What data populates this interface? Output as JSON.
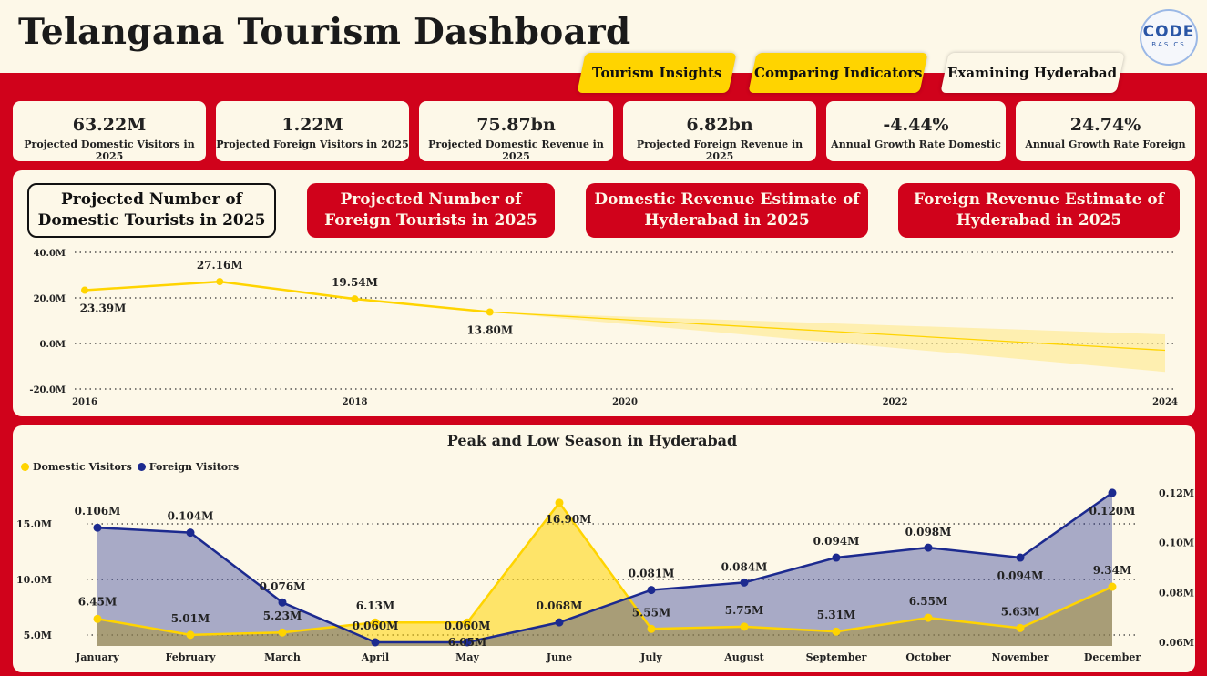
{
  "header": {
    "title": "Telangana Tourism Dashboard",
    "logo_main": "CODE",
    "logo_sub": "BASICS"
  },
  "nav": {
    "tourism_insights": "Tourism Insights",
    "comparing_indicators": "Comparing Indicators",
    "examining_hyderabad": "Examining Hyderabad",
    "active": "Examining Hyderabad"
  },
  "kpis": [
    {
      "value": "63.22M",
      "label": "Projected Domestic Visitors in 2025"
    },
    {
      "value": "1.22M",
      "label": "Projected Foreign Visitors in 2025"
    },
    {
      "value": "75.87bn",
      "label": "Projected Domestic Revenue in 2025"
    },
    {
      "value": "6.82bn",
      "label": "Projected Foreign Revenue in 2025"
    },
    {
      "value": "-4.44%",
      "label": "Annual Growth Rate Domestic"
    },
    {
      "value": "24.74%",
      "label": "Annual Growth Rate Foreign"
    }
  ],
  "tabs": [
    {
      "label": "Projected Number of Domestic Tourists in 2025",
      "active": true
    },
    {
      "label": "Projected Number of Foreign Tourists in 2025",
      "active": false
    },
    {
      "label": "Domestic Revenue Estimate of Hyderabad in 2025",
      "active": false
    },
    {
      "label": "Foreign Revenue Estimate of Hyderabad in 2025",
      "active": false
    }
  ],
  "colors": {
    "brand_red": "#d0021b",
    "panel_bg": "#fdf8e8",
    "yellow": "#ffd400",
    "navy": "#1c2a8f"
  },
  "chart_data": [
    {
      "type": "line",
      "x": [
        2016,
        2017,
        2018,
        2019
      ],
      "series": [
        {
          "values": [
            23.39,
            27.16,
            19.54,
            13.8
          ],
          "labels": [
            "23.39M",
            "27.16M",
            "19.54M",
            "13.80M"
          ]
        }
      ],
      "forecast": {
        "x": [
          2019,
          2024
        ],
        "values": [
          13.8,
          -3.0
        ],
        "upper": [
          13.8,
          4.0
        ],
        "lower": [
          13.8,
          -12.5
        ]
      },
      "xticks": [
        "2016",
        "2018",
        "2020",
        "2022",
        "2024"
      ],
      "xlim": [
        2016,
        2024
      ],
      "yticks": [
        "40.0M",
        "20.0M",
        "0.0M",
        "-20.0M"
      ],
      "ylim": [
        -20,
        40
      ],
      "grid": true
    },
    {
      "type": "area",
      "title": "Peak and Low Season in Hyderabad",
      "categories": [
        "January",
        "February",
        "March",
        "April",
        "May",
        "June",
        "July",
        "August",
        "September",
        "October",
        "November",
        "December"
      ],
      "series": [
        {
          "name": "Domestic Visitors",
          "axis": "left",
          "values": [
            6.45,
            5.01,
            5.23,
            6.13,
            6.13,
            16.9,
            5.55,
            5.75,
            5.31,
            6.55,
            5.63,
            9.34
          ],
          "labels": [
            "6.45M",
            "5.01M",
            "5.23M",
            "6.13M",
            "",
            "16.90M",
            "5.55M",
            "5.75M",
            "5.31M",
            "6.55M",
            "5.63M",
            "9.34M"
          ]
        },
        {
          "name": "Foreign Visitors",
          "axis": "right",
          "values": [
            0.106,
            0.104,
            0.076,
            0.06,
            0.06,
            0.068,
            0.081,
            0.084,
            0.094,
            0.098,
            0.094,
            0.12
          ],
          "labels": [
            "0.106M",
            "0.104M",
            "0.076M",
            "0.060M",
            "0.060M",
            "0.068M",
            "0.081M",
            "0.084M",
            "0.094M",
            "0.098M",
            "0.094M",
            "0.120M"
          ]
        }
      ],
      "extra_labels": [
        "6.05M"
      ],
      "yticks_left": [
        "15.0M",
        "10.0M",
        "5.0M"
      ],
      "ylim_left": [
        3.9,
        18.5
      ],
      "yticks_right": [
        "0.12M",
        "0.10M",
        "0.08M",
        "0.06M"
      ],
      "ylim_right": [
        0.0596,
        0.1262
      ],
      "legend_position": "top-left",
      "grid": true
    }
  ]
}
